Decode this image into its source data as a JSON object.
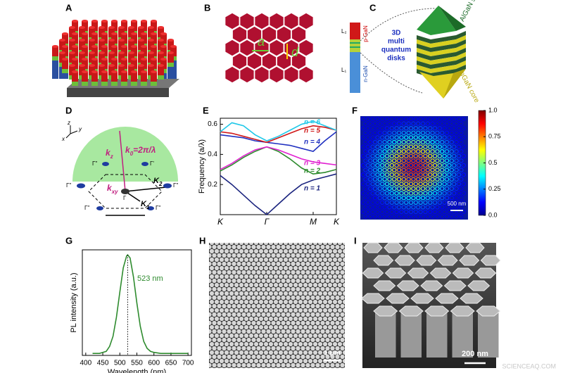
{
  "panel_labels": [
    "A",
    "B",
    "C",
    "D",
    "E",
    "F",
    "G",
    "H",
    "I"
  ],
  "panel_b": {
    "lattice": "a",
    "diameter": "d"
  },
  "panel_c": {
    "l2": "L₂",
    "p_gan": "p-GaN",
    "n_gan": "n-GaN",
    "l1": "L₁",
    "mqd": [
      "3D",
      "multi",
      "quantum",
      "disks"
    ],
    "shell": "AlGaN shell",
    "core": "InGaN core"
  },
  "panel_d": {
    "axes": [
      "z",
      "y",
      "x"
    ],
    "kz": {
      "main": "k",
      "sub": "z"
    },
    "k0": {
      "main": "k",
      "sub": "0",
      "rest": "=2π/λ"
    },
    "kxy": {
      "main": "k",
      "sub": "xy"
    },
    "K2": {
      "main": "K",
      "sub": "2"
    },
    "K1": {
      "main": "K",
      "sub": "1"
    },
    "gammas": [
      "Γ''",
      "Γ'",
      "Γ''",
      "Γ''",
      "Γ''",
      "Γ''",
      "Γ"
    ]
  },
  "chart_data": [
    {
      "type": "line",
      "ylabel": "Frequency (a/λ)",
      "x": [
        0,
        0.25,
        0.5,
        0.75,
        1,
        1.25,
        1.5,
        1.75,
        2,
        2.25,
        2.5
      ],
      "xlim": [
        0,
        2.5
      ],
      "xticks": [
        {
          "value": 0,
          "label": "K"
        },
        {
          "value": 1,
          "label": "Γ"
        },
        {
          "value": 2,
          "label": "M"
        },
        {
          "value": 2.5,
          "label": "K"
        }
      ],
      "ylim": [
        0,
        0.64
      ],
      "yticks": [
        0.2,
        0.4,
        0.6
      ],
      "series": [
        {
          "name": "n = 1",
          "color": "#1a237e",
          "values": [
            0.26,
            0.2,
            0.13,
            0.06,
            0,
            0.07,
            0.14,
            0.2,
            0.23,
            0.25,
            0.27
          ]
        },
        {
          "name": "n = 2",
          "color": "#2e8b2e",
          "values": [
            0.29,
            0.33,
            0.38,
            0.42,
            0.45,
            0.42,
            0.37,
            0.31,
            0.27,
            0.28,
            0.3
          ]
        },
        {
          "name": "n = 3",
          "color": "#e020d0",
          "values": [
            0.3,
            0.34,
            0.39,
            0.43,
            0.45,
            0.43,
            0.4,
            0.37,
            0.35,
            0.34,
            0.33
          ]
        },
        {
          "name": "n = 4",
          "color": "#2030c0",
          "values": [
            0.53,
            0.52,
            0.51,
            0.49,
            0.48,
            0.47,
            0.46,
            0.44,
            0.42,
            0.49,
            0.55
          ]
        },
        {
          "name": "n = 5",
          "color": "#d01818",
          "values": [
            0.55,
            0.54,
            0.52,
            0.5,
            0.48,
            0.51,
            0.54,
            0.57,
            0.59,
            0.58,
            0.56
          ]
        },
        {
          "name": "n = 6",
          "color": "#20c8e8",
          "values": [
            0.55,
            0.61,
            0.59,
            0.53,
            0.49,
            0.52,
            0.56,
            0.6,
            0.62,
            0.59,
            0.56
          ]
        }
      ]
    },
    {
      "type": "line",
      "xlabel": "Wavelength (nm)",
      "ylabel": "PL intensity (a.u.)",
      "annotation": "523 nm",
      "x": [
        420,
        430,
        440,
        450,
        460,
        470,
        480,
        490,
        500,
        510,
        520,
        523,
        530,
        540,
        550,
        560,
        570,
        580,
        590,
        600,
        620,
        640,
        660,
        680,
        700
      ],
      "xlim": [
        390,
        710
      ],
      "xticks": [
        400,
        450,
        500,
        550,
        600,
        650,
        700
      ],
      "ylim": [
        0,
        1.05
      ],
      "series": [
        {
          "color": "#2e8b2e",
          "values": [
            0.02,
            0.02,
            0.02,
            0.03,
            0.04,
            0.09,
            0.19,
            0.38,
            0.63,
            0.87,
            0.99,
            1.0,
            0.97,
            0.78,
            0.52,
            0.29,
            0.14,
            0.07,
            0.04,
            0.03,
            0.02,
            0.02,
            0.02,
            0.02,
            0.02
          ]
        }
      ]
    }
  ],
  "panel_f": {
    "colorbar": {
      "lim": [
        0,
        1
      ],
      "ticks": [
        {
          "value": 0,
          "label": "0.0"
        },
        0.25,
        0.5,
        0.75,
        {
          "value": 1,
          "label": "1.0"
        }
      ]
    },
    "scale_bar": "500 nm"
  },
  "panel_h": {
    "scale_bar": "1 μm"
  },
  "panel_i": {
    "scale_bar": "200 nm"
  },
  "watermark": "SCIENCEAQ.COM"
}
